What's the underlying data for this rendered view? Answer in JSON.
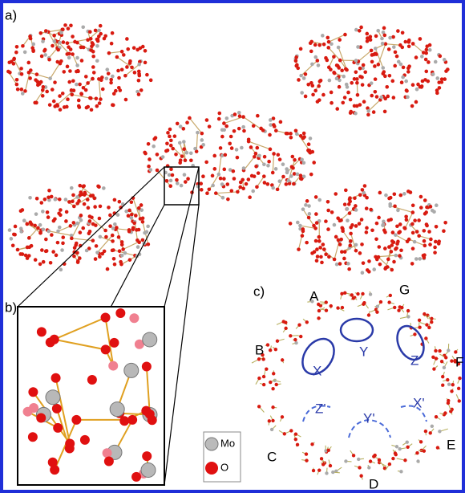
{
  "panels": [
    {
      "label": "a)"
    },
    {
      "label": "b)"
    },
    {
      "label": "c)"
    }
  ],
  "ring_labels": [
    "A",
    "G",
    "B",
    "F",
    "C",
    "E",
    "D"
  ],
  "site_labels": [
    "X",
    "Y",
    "Z",
    "Z'",
    "Y'",
    "X'"
  ],
  "legend": [
    {
      "label": "Mo"
    },
    {
      "label": "O"
    }
  ]
}
